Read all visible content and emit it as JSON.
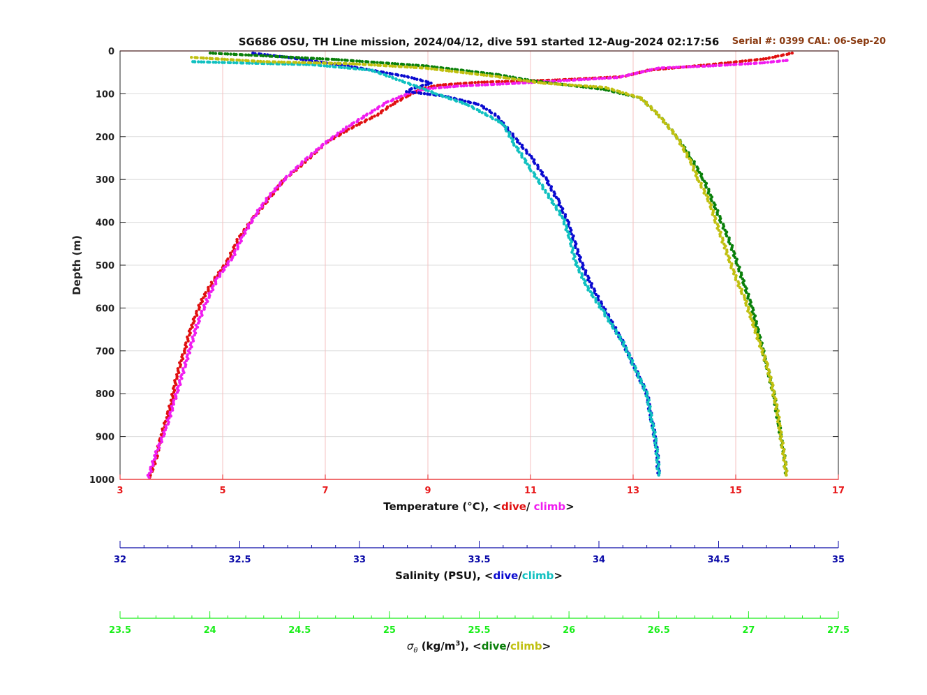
{
  "chart_data": {
    "type": "scatter",
    "title": "SG686 OSU, TH Line mission, 2024/04/12, dive 591 started 12-Aug-2024 02:17:56",
    "serial_label": "Serial #: 0399  CAL: 06-Sep-20",
    "ylabel": "Depth (m)",
    "ylim": [
      0,
      1000
    ],
    "y_reversed": true,
    "y_ticks": [
      0,
      100,
      200,
      300,
      400,
      500,
      600,
      700,
      800,
      900,
      1000
    ],
    "grid": true,
    "axes": {
      "temperature": {
        "label_prefix": "Temperature (°C), <",
        "dive_label": "dive",
        "sep": "/ ",
        "climb_label": "climb",
        "label_suffix": ">",
        "range": [
          3,
          17
        ],
        "ticks": [
          3,
          5,
          7,
          9,
          11,
          13,
          15,
          17
        ],
        "color": "#e8191b"
      },
      "salinity": {
        "label_prefix": "Salinity (PSU), <",
        "dive_label": "dive",
        "sep": "/",
        "climb_label": "climb",
        "label_suffix": ">",
        "range": [
          32,
          35
        ],
        "ticks": [
          32,
          32.5,
          33,
          33.5,
          34,
          34.5,
          35
        ],
        "color": "#0a0aa8"
      },
      "density": {
        "label_sigma": "σ",
        "label_theta": "θ",
        "label_prefix": " (kg/m",
        "label_sup": "3",
        "label_mid": "), <",
        "dive_label": "dive",
        "sep": "/",
        "climb_label": "climb",
        "label_suffix": ">",
        "range": [
          23.5,
          27.5
        ],
        "ticks": [
          23.5,
          24,
          24.5,
          25,
          25.5,
          26,
          26.5,
          27,
          27.5
        ],
        "color": "#1aee1a"
      }
    },
    "series": [
      {
        "name": "Temperature dive",
        "axis": "temperature",
        "color": "#e01010",
        "points": [
          [
            16.1,
            5
          ],
          [
            15.6,
            18
          ],
          [
            14.5,
            32
          ],
          [
            13.3,
            45
          ],
          [
            12.8,
            60
          ],
          [
            11.5,
            68
          ],
          [
            10.0,
            73
          ],
          [
            9.2,
            80
          ],
          [
            8.9,
            88
          ],
          [
            8.6,
            105
          ],
          [
            8.3,
            125
          ],
          [
            8.0,
            150
          ],
          [
            7.5,
            180
          ],
          [
            7.0,
            215
          ],
          [
            6.6,
            260
          ],
          [
            6.2,
            300
          ],
          [
            5.9,
            345
          ],
          [
            5.6,
            390
          ],
          [
            5.3,
            440
          ],
          [
            5.1,
            490
          ],
          [
            4.8,
            540
          ],
          [
            4.6,
            580
          ],
          [
            4.4,
            640
          ],
          [
            4.25,
            700
          ],
          [
            4.1,
            760
          ],
          [
            4.0,
            820
          ],
          [
            3.9,
            860
          ],
          [
            3.8,
            900
          ],
          [
            3.7,
            950
          ],
          [
            3.58,
            995
          ]
        ]
      },
      {
        "name": "Temperature climb",
        "axis": "temperature",
        "color": "#f01df0",
        "points": [
          [
            3.55,
            995
          ],
          [
            3.7,
            940
          ],
          [
            3.9,
            880
          ],
          [
            4.05,
            820
          ],
          [
            4.2,
            760
          ],
          [
            4.35,
            700
          ],
          [
            4.5,
            640
          ],
          [
            4.7,
            580
          ],
          [
            4.9,
            530
          ],
          [
            5.2,
            480
          ],
          [
            5.4,
            430
          ],
          [
            5.65,
            380
          ],
          [
            5.9,
            340
          ],
          [
            6.2,
            300
          ],
          [
            6.6,
            255
          ],
          [
            7.0,
            215
          ],
          [
            7.4,
            180
          ],
          [
            7.8,
            150
          ],
          [
            8.2,
            120
          ],
          [
            8.6,
            100
          ],
          [
            9.0,
            88
          ],
          [
            9.6,
            82
          ],
          [
            10.8,
            75
          ],
          [
            12.7,
            62
          ],
          [
            13.5,
            40
          ],
          [
            14.5,
            35
          ],
          [
            15.5,
            28
          ],
          [
            16.0,
            22
          ]
        ]
      },
      {
        "name": "Salinity dive",
        "axis": "salinity",
        "color": "#0a0ad0",
        "points": [
          [
            32.55,
            5
          ],
          [
            32.7,
            15
          ],
          [
            32.95,
            35
          ],
          [
            33.2,
            60
          ],
          [
            33.3,
            75
          ],
          [
            33.22,
            88
          ],
          [
            33.2,
            95
          ],
          [
            33.35,
            105
          ],
          [
            33.5,
            125
          ],
          [
            33.57,
            150
          ],
          [
            33.63,
            190
          ],
          [
            33.72,
            250
          ],
          [
            33.78,
            300
          ],
          [
            33.83,
            350
          ],
          [
            33.87,
            400
          ],
          [
            33.9,
            450
          ],
          [
            33.93,
            500
          ],
          [
            33.98,
            560
          ],
          [
            34.04,
            620
          ],
          [
            34.1,
            680
          ],
          [
            34.15,
            740
          ],
          [
            34.2,
            800
          ],
          [
            34.22,
            860
          ],
          [
            34.24,
            920
          ],
          [
            34.25,
            990
          ]
        ]
      },
      {
        "name": "Salinity climb",
        "axis": "salinity",
        "color": "#10c0c0",
        "points": [
          [
            32.3,
            25
          ],
          [
            32.5,
            28
          ],
          [
            32.8,
            32
          ],
          [
            33.05,
            45
          ],
          [
            33.15,
            65
          ],
          [
            33.25,
            85
          ],
          [
            33.32,
            100
          ],
          [
            33.45,
            125
          ],
          [
            33.6,
            170
          ],
          [
            33.65,
            220
          ],
          [
            33.72,
            280
          ],
          [
            33.78,
            330
          ],
          [
            33.85,
            390
          ],
          [
            33.88,
            440
          ],
          [
            33.9,
            490
          ],
          [
            33.95,
            550
          ],
          [
            34.02,
            610
          ],
          [
            34.1,
            680
          ],
          [
            34.15,
            740
          ],
          [
            34.2,
            800
          ],
          [
            34.22,
            860
          ],
          [
            34.24,
            920
          ],
          [
            34.25,
            990
          ]
        ]
      },
      {
        "name": "Density dive",
        "axis": "density",
        "color": "#0a800a",
        "points": [
          [
            24.0,
            5
          ],
          [
            24.7,
            20
          ],
          [
            25.2,
            35
          ],
          [
            25.6,
            55
          ],
          [
            25.8,
            70
          ],
          [
            26.2,
            90
          ],
          [
            26.4,
            110
          ],
          [
            26.5,
            150
          ],
          [
            26.6,
            200
          ],
          [
            26.68,
            250
          ],
          [
            26.75,
            300
          ],
          [
            26.8,
            350
          ],
          [
            26.85,
            400
          ],
          [
            26.9,
            450
          ],
          [
            26.94,
            500
          ],
          [
            26.98,
            550
          ],
          [
            27.02,
            600
          ],
          [
            27.05,
            650
          ],
          [
            27.08,
            700
          ],
          [
            27.11,
            750
          ],
          [
            27.14,
            800
          ],
          [
            27.16,
            850
          ],
          [
            27.18,
            900
          ],
          [
            27.2,
            950
          ],
          [
            27.21,
            990
          ]
        ]
      },
      {
        "name": "Density climb",
        "axis": "density",
        "color": "#c0c010",
        "points": [
          [
            23.9,
            15
          ],
          [
            24.3,
            25
          ],
          [
            24.8,
            30
          ],
          [
            25.2,
            40
          ],
          [
            25.6,
            60
          ],
          [
            25.85,
            75
          ],
          [
            26.2,
            85
          ],
          [
            26.4,
            110
          ],
          [
            26.5,
            150
          ],
          [
            26.6,
            200
          ],
          [
            26.68,
            260
          ],
          [
            26.72,
            300
          ],
          [
            26.78,
            350
          ],
          [
            26.82,
            400
          ],
          [
            26.87,
            460
          ],
          [
            26.92,
            520
          ],
          [
            26.98,
            580
          ],
          [
            27.02,
            630
          ],
          [
            27.06,
            680
          ],
          [
            27.1,
            730
          ],
          [
            27.13,
            780
          ],
          [
            27.16,
            840
          ],
          [
            27.18,
            900
          ],
          [
            27.2,
            950
          ],
          [
            27.21,
            990
          ]
        ]
      }
    ]
  }
}
